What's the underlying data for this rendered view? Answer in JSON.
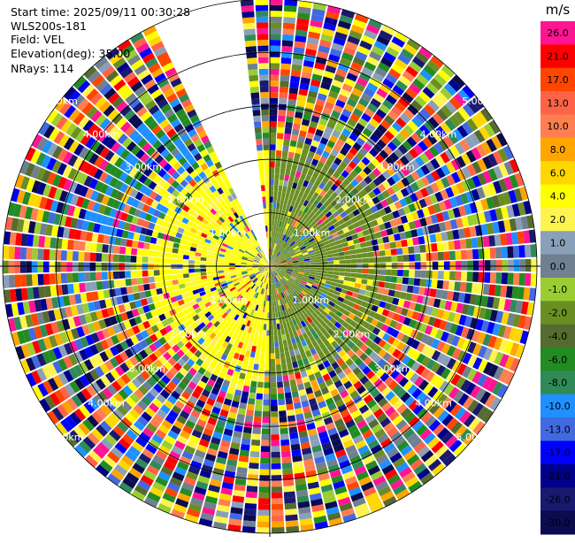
{
  "header": {
    "start_time": "Start time: 2025/09/11 00:30:28",
    "instrument": "WLS200s-181",
    "field": "Field: VEL",
    "elevation": "Elevation(deg): 35.00",
    "nrays": "NRays: 114"
  },
  "chart_data": {
    "type": "heatmap",
    "projection": "polar PPI",
    "range_rings_km": [
      1.0,
      2.0,
      3.0,
      4.0,
      5.0
    ],
    "range_ring_labels": [
      "1.00km",
      "2.00km",
      "3.00km",
      "4.00km",
      "5.00km"
    ],
    "max_range_km": 5.0,
    "n_rays": 114,
    "azimuth_gap_deg": [
      -25,
      -8
    ],
    "colorbar": {
      "unit": "m/s",
      "tick_labels": [
        "26.0",
        "21.0",
        "17.0",
        "13.0",
        "10.0",
        "8.0",
        "6.0",
        "4.0",
        "2.0",
        "1.0",
        "0.0",
        "-1.0",
        "-2.0",
        "-4.0",
        "-6.0",
        "-8.0",
        "-10.0",
        "-13.0",
        "-17.0",
        "-21.0",
        "-26.0",
        "-30.0"
      ],
      "colors": [
        "#ff1493",
        "#ff0000",
        "#ff4500",
        "#ff6347",
        "#ff7f50",
        "#ffa500",
        "#ffd700",
        "#ffff00",
        "#fff44f",
        "#8aa0b8",
        "#708090",
        "#9acd32",
        "#6b8e23",
        "#556b2f",
        "#228b22",
        "#2e8b57",
        "#1e90ff",
        "#4169e1",
        "#0000ff",
        "#00008b",
        "#191970",
        "#0b0b50"
      ]
    },
    "near_field": {
      "west_sector_dominant_value": 4.0,
      "east_sector_dominant_value": -2.0
    }
  }
}
